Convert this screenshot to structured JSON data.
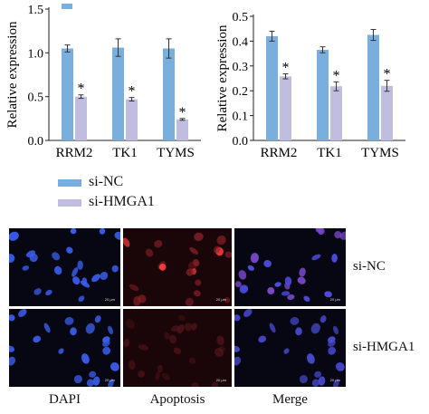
{
  "chart_data": [
    {
      "type": "bar",
      "ylabel": "Relative expression",
      "categories": [
        "RRM2",
        "TK1",
        "TYMS"
      ],
      "ylim": [
        0,
        1.5
      ],
      "yticks": [
        "0.0",
        "0.5",
        "1.0",
        "1.5"
      ],
      "series": [
        {
          "name": "si-NC",
          "values": [
            1.05,
            1.06,
            1.05
          ],
          "errors": [
            0.04,
            0.1,
            0.11
          ]
        },
        {
          "name": "si-HMGA1",
          "values": [
            0.5,
            0.47,
            0.24
          ],
          "errors": [
            0.02,
            0.02,
            0.01
          ]
        }
      ],
      "annotation": "*"
    },
    {
      "type": "bar",
      "ylabel": "Relative expression",
      "categories": [
        "RRM2",
        "TK1",
        "TYMS"
      ],
      "ylim": [
        0,
        0.5
      ],
      "yticks": [
        "0.0",
        "0.1",
        "0.2",
        "0.3",
        "0.4",
        "0.5"
      ],
      "series": [
        {
          "name": "si-NC",
          "values": [
            0.42,
            0.365,
            0.425
          ],
          "errors": [
            0.02,
            0.012,
            0.022
          ]
        },
        {
          "name": "si-HMGA1",
          "values": [
            0.258,
            0.218,
            0.22
          ],
          "errors": [
            0.01,
            0.018,
            0.022
          ]
        }
      ],
      "annotation": "*"
    }
  ],
  "legend": [
    {
      "label": "si-NC",
      "color": "#7aaedc"
    },
    {
      "label": "si-HMGA1",
      "color": "#c0bde0"
    }
  ],
  "colors": {
    "si_nc": "#7aaedc",
    "si_hmga1": "#c0bde0",
    "error": "#333333"
  },
  "micrographs": {
    "rows": [
      "si-NC",
      "si-HMGA1"
    ],
    "columns": [
      "DAPI",
      "Apoptosis",
      "Merge"
    ],
    "scale_text": "20 μm"
  }
}
